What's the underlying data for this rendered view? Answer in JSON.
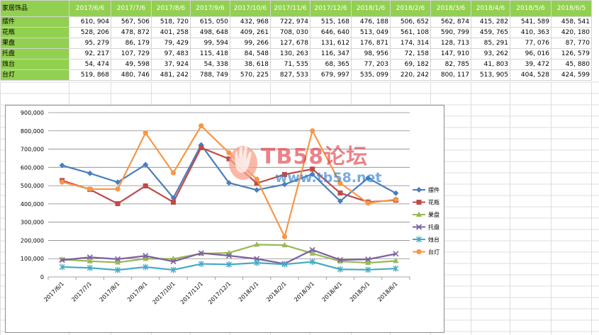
{
  "sheet": {
    "corner": "家居饰品",
    "headers": [
      "2017/6/6",
      "2017/7/6",
      "2017/8/6",
      "2017/9/6",
      "2017/10/6",
      "2017/11/6",
      "2017/12/6",
      "2018/1/6",
      "2018/2/6",
      "2018/3/6",
      "2018/4/6",
      "2018/5/6",
      "2018/6/5"
    ],
    "rows": [
      {
        "label": "摆件",
        "values": [
          "610, 904",
          "567, 506",
          "518, 720",
          "615, 050",
          "432, 968",
          "722, 974",
          "515, 168",
          "476, 188",
          "506, 652",
          "562, 874",
          "415, 282",
          "541, 589",
          "458, 541"
        ]
      },
      {
        "label": "花瓶",
        "values": [
          "528, 206",
          "478, 872",
          "401, 258",
          "498, 648",
          "409, 261",
          "708, 030",
          "646, 640",
          "513, 049",
          "561, 108",
          "590, 799",
          "459, 765",
          "410, 363",
          "420, 180"
        ]
      },
      {
        "label": "果盘",
        "values": [
          "95, 279",
          "86, 179",
          "79, 429",
          "99, 594",
          "99, 266",
          "127, 678",
          "131, 612",
          "176, 871",
          "174, 314",
          "128, 713",
          "85, 291",
          "77, 076",
          "87, 770"
        ]
      },
      {
        "label": "托盘",
        "values": [
          "92, 217",
          "107, 729",
          "97, 483",
          "115, 418",
          "84, 548",
          "130, 263",
          "116, 347",
          "98, 956",
          "72, 158",
          "147, 910",
          "93, 262",
          "96, 016",
          "126, 579"
        ]
      },
      {
        "label": "烛台",
        "values": [
          "54, 474",
          "49, 598",
          "37, 924",
          "54, 338",
          "38, 618",
          "71, 535",
          "68, 365",
          "77, 203",
          "69, 182",
          "82, 785",
          "41, 803",
          "39, 472",
          "45, 880"
        ]
      },
      {
        "label": "台灯",
        "values": [
          "519, 868",
          "480, 746",
          "481, 242",
          "788, 749",
          "570, 225",
          "827, 533",
          "679, 997",
          "535, 099",
          "220, 242",
          "800, 117",
          "513, 905",
          "404, 528",
          "424, 599"
        ]
      }
    ]
  },
  "chart_data": {
    "type": "line",
    "categories": [
      "2017/6/1",
      "2017/7/1",
      "2017/8/1",
      "2017/9/1",
      "2017/10/1",
      "2017/11/1",
      "2017/12/1",
      "2018/1/1",
      "2018/2/1",
      "2018/3/1",
      "2018/4/1",
      "2018/5/1",
      "2018/6/1"
    ],
    "ylim": [
      0,
      900000
    ],
    "yticks": [
      0,
      100000,
      200000,
      300000,
      400000,
      500000,
      600000,
      700000,
      800000,
      900000
    ],
    "ytick_labels": [
      "0",
      "100,000",
      "200,000",
      "300,000",
      "400,000",
      "500,000",
      "600,000",
      "700,000",
      "800,000",
      "900,000"
    ],
    "grid": true,
    "legend_position": "right",
    "series": [
      {
        "name": "摆件",
        "color": "#4a7ebb",
        "marker": "diamond",
        "values": [
          610904,
          567506,
          518720,
          615050,
          432968,
          722974,
          515168,
          476188,
          506652,
          562874,
          415282,
          541589,
          458541
        ]
      },
      {
        "name": "花瓶",
        "color": "#be4b48",
        "marker": "square",
        "values": [
          528206,
          478872,
          401258,
          498648,
          409261,
          708030,
          646640,
          513049,
          561108,
          590799,
          459765,
          410363,
          420180
        ]
      },
      {
        "name": "果盘",
        "color": "#98b954",
        "marker": "triangle",
        "values": [
          95279,
          86179,
          79429,
          99594,
          99266,
          127678,
          131612,
          176871,
          174314,
          128713,
          85291,
          77076,
          87770
        ]
      },
      {
        "name": "托盘",
        "color": "#7d60a0",
        "marker": "x",
        "values": [
          92217,
          107729,
          97483,
          115418,
          84548,
          130263,
          116347,
          98956,
          72158,
          147910,
          93262,
          96016,
          126579
        ]
      },
      {
        "name": "烛台",
        "color": "#46aac5",
        "marker": "star",
        "values": [
          54474,
          49598,
          37924,
          54338,
          38618,
          71535,
          68365,
          77203,
          69182,
          82785,
          41803,
          39472,
          45880
        ]
      },
      {
        "name": "台灯",
        "color": "#f79646",
        "marker": "circle",
        "values": [
          519868,
          480746,
          481242,
          788749,
          570225,
          827533,
          679997,
          535099,
          220242,
          800117,
          513905,
          404528,
          424599
        ]
      }
    ]
  },
  "watermark": {
    "brand": "TB58论坛",
    "url": "www.tb58.net"
  }
}
